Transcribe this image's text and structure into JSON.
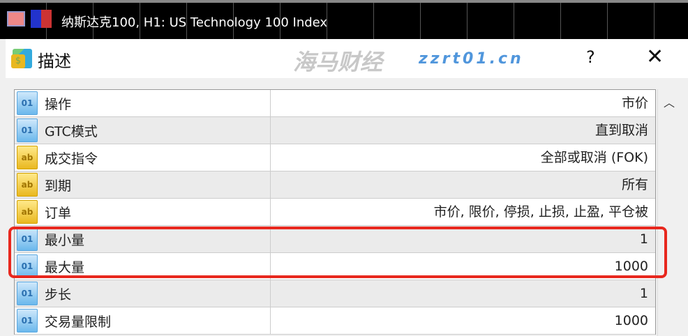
{
  "window": {
    "title": "纳斯达克100, H1:  US Technology 100 Index"
  },
  "dialog": {
    "title": "描述",
    "help_label": "?",
    "close_label": "✕"
  },
  "rows": [
    {
      "icon": "numeric-icon",
      "icon_text": "01",
      "label": "操作",
      "value": "市价"
    },
    {
      "icon": "numeric-icon",
      "icon_text": "01",
      "label": "GTC模式",
      "value": "直到取消"
    },
    {
      "icon": "text-icon",
      "icon_text": "ab",
      "label": "成交指令",
      "value": "全部或取消 (FOK)"
    },
    {
      "icon": "text-icon",
      "icon_text": "ab",
      "label": "到期",
      "value": "所有"
    },
    {
      "icon": "text-icon",
      "icon_text": "ab",
      "label": "订单",
      "value": "市价, 限价, 停损, 止损, 止盈, 平仓被"
    },
    {
      "icon": "numeric-icon",
      "icon_text": "01",
      "label": "最小量",
      "value": "1"
    },
    {
      "icon": "numeric-icon",
      "icon_text": "01",
      "label": "最大量",
      "value": "1000"
    },
    {
      "icon": "numeric-icon",
      "icon_text": "01",
      "label": "步长",
      "value": "1"
    },
    {
      "icon": "numeric-icon",
      "icon_text": "01",
      "label": "交易量限制",
      "value": "1000"
    }
  ],
  "highlight_color": "#e8281e",
  "watermark": {
    "text": "海马财经",
    "url": "zzrt01.cn"
  }
}
